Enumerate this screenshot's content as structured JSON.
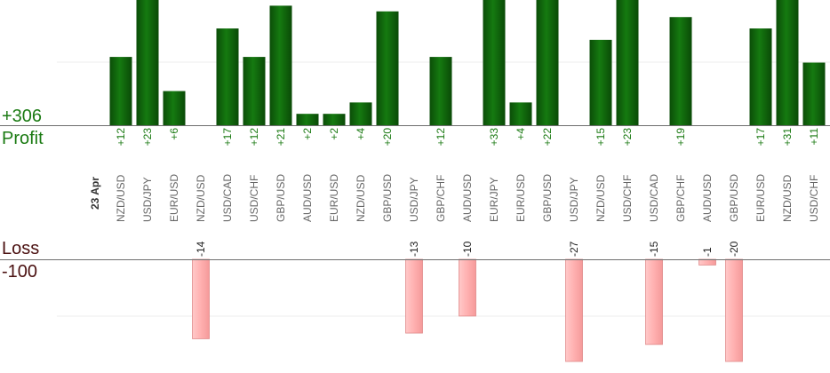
{
  "chart_data": {
    "type": "bar",
    "date_label": "23 Apr",
    "categories": [
      "NZD/USD",
      "USD/JPY",
      "EUR/USD",
      "NZD/USD",
      "USD/CAD",
      "USD/CHF",
      "GBP/USD",
      "AUD/USD",
      "EUR/USD",
      "NZD/USD",
      "GBP/USD",
      "USD/JPY",
      "GBP/CHF",
      "AUD/USD",
      "EUR/JPY",
      "EUR/USD",
      "GBP/USD",
      "USD/JPY",
      "NZD/USD",
      "USD/CHF",
      "USD/CAD",
      "GBP/CHF",
      "AUD/USD",
      "GBP/USD",
      "EUR/USD",
      "NZD/USD",
      "USD/CHF"
    ],
    "series": [
      {
        "name": "Profit",
        "values": [
          12,
          23,
          6,
          null,
          17,
          12,
          21,
          2,
          2,
          4,
          20,
          null,
          12,
          null,
          33,
          4,
          22,
          null,
          15,
          23,
          null,
          19,
          null,
          null,
          17,
          31,
          11
        ]
      },
      {
        "name": "Loss",
        "values": [
          null,
          null,
          null,
          -14,
          null,
          null,
          null,
          null,
          null,
          null,
          null,
          -13,
          null,
          -10,
          null,
          null,
          null,
          -27,
          null,
          null,
          -15,
          null,
          -1,
          -20,
          null,
          null,
          null
        ]
      }
    ],
    "profit_total": "+306",
    "loss_total": "-100",
    "profit_label": "Profit",
    "loss_label": "Loss",
    "profit_ylim": [
      0,
      22
    ],
    "loss_ylim": [
      -18,
      0
    ],
    "colors": {
      "profit": "#0e5c0a",
      "loss": "#ffb3b3",
      "profit_text": "#1a7a12",
      "loss_text": "#4a1010"
    }
  }
}
